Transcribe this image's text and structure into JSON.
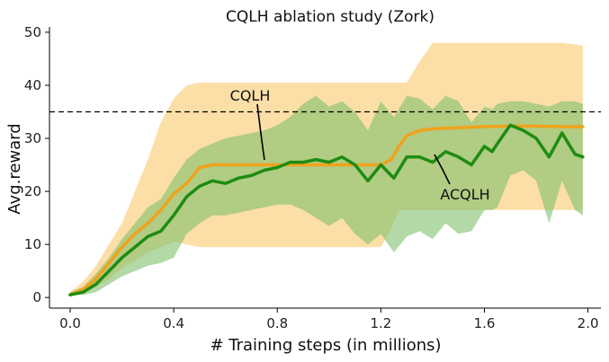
{
  "chart_data": {
    "type": "line",
    "title": "CQLH ablation study (Zork)",
    "xlabel": "# Training steps (in millions)",
    "ylabel": "Avg.reward",
    "xlim": [
      -0.08,
      2.05
    ],
    "ylim": [
      -2,
      51
    ],
    "xticks": [
      "0.0",
      "0.4",
      "0.8",
      "1.2",
      "1.6",
      "2.0"
    ],
    "xtick_values": [
      0.0,
      0.4,
      0.8,
      1.2,
      1.6,
      2.0
    ],
    "yticks": [
      "0",
      "10",
      "20",
      "30",
      "40",
      "50"
    ],
    "ytick_values": [
      0,
      10,
      20,
      30,
      40,
      50
    ],
    "grid": false,
    "reference_line": {
      "y": 35,
      "style": "dashed",
      "color": "#000000"
    },
    "annotations": [
      "CQLH",
      "ACQLH"
    ],
    "series": [
      {
        "name": "CQLH",
        "color": "#F0A21C",
        "band_color": "#FBD38A",
        "x": [
          0.0,
          0.05,
          0.1,
          0.15,
          0.2,
          0.25,
          0.3,
          0.35,
          0.4,
          0.45,
          0.5,
          0.55,
          0.6,
          0.7,
          0.8,
          0.9,
          1.0,
          1.1,
          1.2,
          1.24,
          1.27,
          1.3,
          1.35,
          1.4,
          1.5,
          1.6,
          1.7,
          1.8,
          1.9,
          1.98
        ],
        "mean": [
          0.5,
          1.5,
          3.5,
          6.5,
          9.5,
          12,
          14,
          16.5,
          19.5,
          21.5,
          24.5,
          25,
          25,
          25,
          25,
          25,
          25,
          25,
          25,
          26,
          28.5,
          30.5,
          31.5,
          31.8,
          32,
          32.2,
          32.3,
          32.3,
          32.2,
          32.2
        ],
        "lower": [
          0.5,
          1.0,
          2.0,
          3.5,
          5.5,
          7.0,
          8.5,
          9.5,
          10.5,
          10.0,
          9.5,
          9.5,
          9.5,
          9.5,
          9.5,
          9.5,
          9.5,
          9.5,
          9.5,
          13.0,
          16.5,
          16.5,
          16.5,
          16.5,
          16.5,
          16.5,
          16.5,
          16.5,
          16.5,
          16.5
        ],
        "upper": [
          1.0,
          3.0,
          6.0,
          10.0,
          14.0,
          20.0,
          26.0,
          33.0,
          37.5,
          40.0,
          40.5,
          40.5,
          40.5,
          40.5,
          40.5,
          40.5,
          40.5,
          40.5,
          40.5,
          40.5,
          40.5,
          40.5,
          44.5,
          48.0,
          48.0,
          48.0,
          48.0,
          48.0,
          48.0,
          47.5
        ]
      },
      {
        "name": "ACQLH",
        "color": "#1E8C12",
        "band_color": "#7FBF6A",
        "x": [
          0.0,
          0.05,
          0.1,
          0.15,
          0.2,
          0.25,
          0.3,
          0.35,
          0.4,
          0.45,
          0.5,
          0.55,
          0.6,
          0.65,
          0.7,
          0.75,
          0.8,
          0.85,
          0.9,
          0.95,
          1.0,
          1.05,
          1.1,
          1.15,
          1.2,
          1.25,
          1.3,
          1.35,
          1.4,
          1.45,
          1.5,
          1.55,
          1.6,
          1.63,
          1.65,
          1.7,
          1.75,
          1.8,
          1.85,
          1.9,
          1.95,
          1.98
        ],
        "mean": [
          0.5,
          1.0,
          2.5,
          5.0,
          7.5,
          9.5,
          11.5,
          12.5,
          15.5,
          19.0,
          21.0,
          22.0,
          21.5,
          22.5,
          23.0,
          24.0,
          24.5,
          25.5,
          25.5,
          26.0,
          25.5,
          26.5,
          25.0,
          22.0,
          25.0,
          22.5,
          26.5,
          26.5,
          25.5,
          27.5,
          26.5,
          25.0,
          28.5,
          27.5,
          29.0,
          32.5,
          31.5,
          30.0,
          26.5,
          31.0,
          27.0,
          26.5
        ],
        "lower": [
          0.5,
          0.5,
          1.0,
          2.5,
          4.0,
          5.0,
          6.0,
          6.5,
          7.5,
          12.0,
          14.0,
          15.5,
          15.5,
          16.0,
          16.5,
          17.0,
          17.5,
          17.5,
          16.5,
          15.0,
          13.5,
          15.0,
          12.0,
          10.0,
          12.0,
          8.5,
          11.5,
          12.5,
          11.0,
          14.0,
          12.0,
          12.5,
          16.5,
          16.5,
          17.0,
          23.0,
          24.0,
          22.0,
          14.0,
          22.0,
          16.5,
          15.5
        ],
        "upper": [
          1.0,
          2.0,
          4.5,
          7.5,
          11.0,
          14.0,
          17.0,
          18.5,
          22.5,
          26.0,
          28.0,
          29.0,
          30.0,
          30.5,
          31.0,
          31.5,
          32.5,
          34.0,
          36.5,
          38.0,
          36.0,
          37.0,
          35.0,
          31.5,
          37.0,
          34.0,
          38.0,
          37.5,
          35.5,
          38.0,
          37.0,
          33.0,
          36.0,
          35.5,
          36.5,
          37.0,
          37.0,
          36.5,
          36.0,
          37.0,
          37.0,
          36.5
        ]
      }
    ]
  }
}
